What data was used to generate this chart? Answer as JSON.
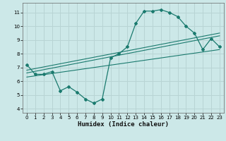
{
  "title": "",
  "xlabel": "Humidex (Indice chaleur)",
  "bg_color": "#cce8e8",
  "line_color": "#1a7a6e",
  "grid_color": "#b8d4d4",
  "xlim": [
    -0.5,
    23.5
  ],
  "ylim": [
    3.7,
    11.7
  ],
  "yticks": [
    4,
    5,
    6,
    7,
    8,
    9,
    10,
    11
  ],
  "xticks": [
    0,
    1,
    2,
    3,
    4,
    5,
    6,
    7,
    8,
    9,
    10,
    11,
    12,
    13,
    14,
    15,
    16,
    17,
    18,
    19,
    20,
    21,
    22,
    23
  ],
  "curve_x": [
    0,
    1,
    2,
    3,
    4,
    5,
    6,
    7,
    8,
    9,
    10,
    11,
    12,
    13,
    14,
    15,
    16,
    17,
    18,
    19,
    20,
    21,
    22,
    23
  ],
  "curve_y": [
    7.2,
    6.5,
    6.5,
    6.7,
    5.3,
    5.6,
    5.2,
    4.7,
    4.4,
    4.7,
    7.7,
    8.0,
    8.5,
    10.2,
    11.1,
    11.1,
    11.2,
    11.0,
    10.7,
    10.0,
    9.5,
    8.3,
    9.1,
    8.5
  ],
  "line1_x": [
    0,
    23
  ],
  "line1_y": [
    6.3,
    8.3
  ],
  "line2_x": [
    0,
    23
  ],
  "line2_y": [
    6.8,
    9.5
  ],
  "line3_x": [
    0,
    23
  ],
  "line3_y": [
    6.6,
    9.3
  ]
}
